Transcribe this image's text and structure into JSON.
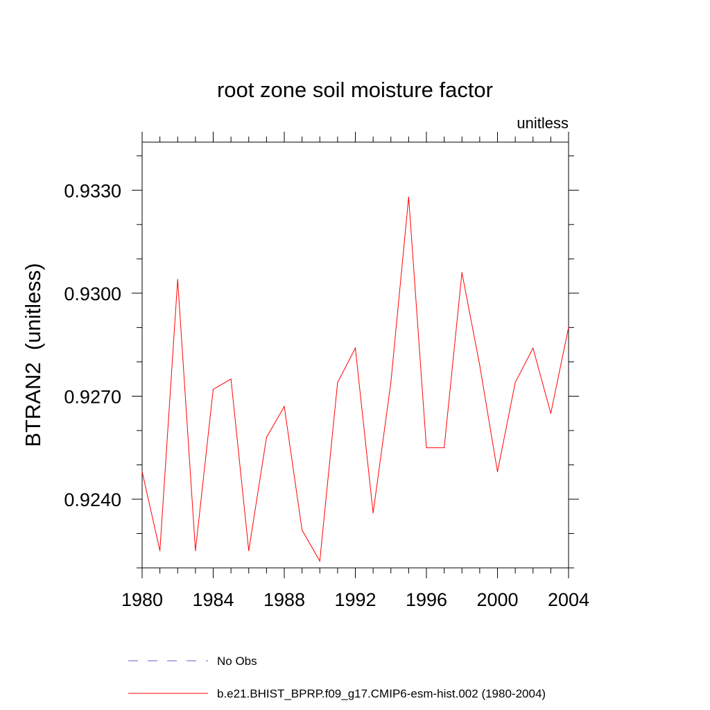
{
  "chart_data": {
    "type": "line",
    "title": "root zone soil moisture factor",
    "subtitle": "unitless",
    "ylabel": "BTRAN2  (unitless)",
    "xlabel": "",
    "xlim": [
      1980,
      2004
    ],
    "ylim": [
      0.922,
      0.9344
    ],
    "x_ticks": [
      1980,
      1984,
      1988,
      1992,
      1996,
      2000,
      2004
    ],
    "x_tick_labels": [
      "1980",
      "1984",
      "1988",
      "1992",
      "1996",
      "2000",
      "2004"
    ],
    "y_ticks": [
      0.924,
      0.927,
      0.93,
      0.933
    ],
    "y_tick_labels": [
      "0.9240",
      "0.9270",
      "0.9300",
      "0.9330"
    ],
    "grid": false,
    "legend_position": "bottom",
    "series": [
      {
        "name": "No Obs",
        "color": "#6a5acd",
        "style": "dashed",
        "x": [],
        "values": []
      },
      {
        "name": "b.e21.BHIST_BPRP.f09_g17.CMIP6-esm-hist.002 (1980-2004)",
        "color": "#ff0000",
        "style": "solid",
        "x": [
          1980,
          1981,
          1982,
          1983,
          1984,
          1985,
          1986,
          1987,
          1988,
          1989,
          1990,
          1991,
          1992,
          1993,
          1994,
          1995,
          1996,
          1997,
          1998,
          1999,
          2000,
          2001,
          2002,
          2003,
          2004
        ],
        "values": [
          0.9248,
          0.9225,
          0.9304,
          0.9225,
          0.9272,
          0.9275,
          0.9225,
          0.9258,
          0.9267,
          0.9231,
          0.9222,
          0.9274,
          0.9284,
          0.9236,
          0.9274,
          0.9328,
          0.9255,
          0.9255,
          0.9306,
          0.9279,
          0.9248,
          0.9274,
          0.9284,
          0.9265,
          0.929
        ]
      }
    ]
  }
}
